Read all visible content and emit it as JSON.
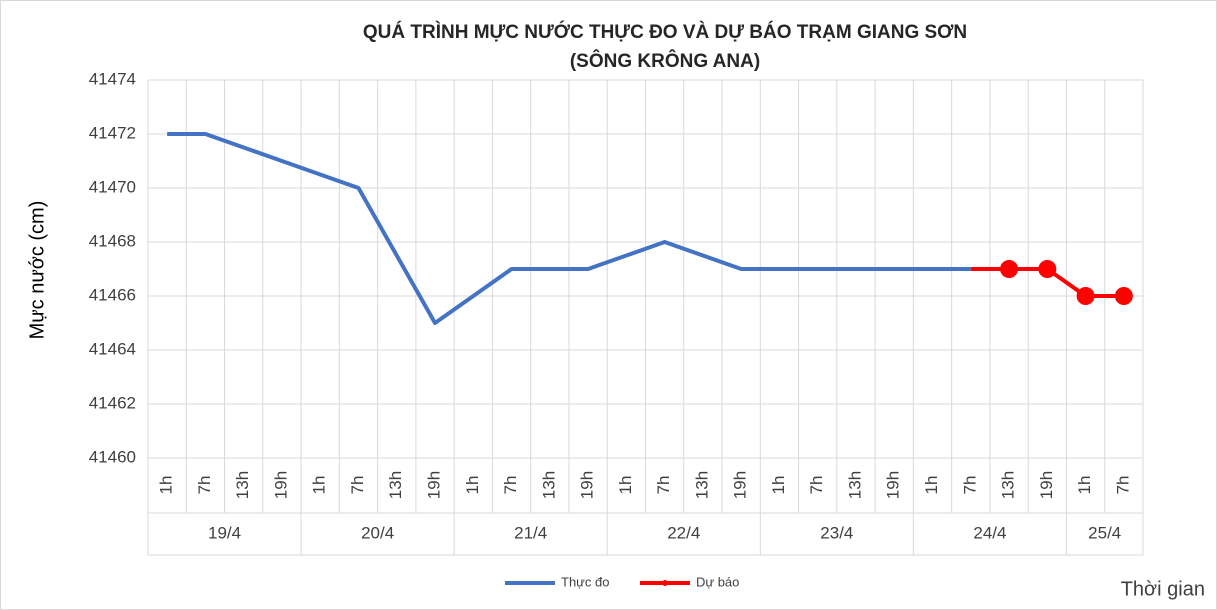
{
  "chart_data": {
    "type": "line",
    "title": "QUÁ TRÌNH MỰC NƯỚC THỰC ĐO VÀ DỰ BÁO TRẠM GIANG SƠN",
    "subtitle": "(SÔNG KRÔNG ANA)",
    "y_label": "Mực nước (cm)",
    "x_label": "Thời gian",
    "groups": [
      {
        "label": "19/4",
        "categories": [
          "1h",
          "7h",
          "13h",
          "19h"
        ]
      },
      {
        "label": "20/4",
        "categories": [
          "1h",
          "7h",
          "13h",
          "19h"
        ]
      },
      {
        "label": "21/4",
        "categories": [
          "1h",
          "7h",
          "13h",
          "19h"
        ]
      },
      {
        "label": "22/4",
        "categories": [
          "1h",
          "7h",
          "13h",
          "19h"
        ]
      },
      {
        "label": "23/4",
        "categories": [
          "1h",
          "7h",
          "13h",
          "19h"
        ]
      },
      {
        "label": "24/4",
        "categories": [
          "1h",
          "7h",
          "13h",
          "19h"
        ]
      },
      {
        "label": "25/4",
        "categories": [
          "1h",
          "7h"
        ]
      }
    ],
    "series": [
      {
        "name": "Thực đo",
        "color": "#4472c4",
        "marker": false,
        "values": [
          41472,
          41472,
          41471.5,
          41471,
          41470.5,
          41470,
          41467.5,
          41465,
          41466,
          41467,
          41467,
          41467,
          41467.5,
          41468,
          41467.5,
          41467,
          41467,
          41467,
          41467,
          41467,
          41467,
          41467,
          null,
          null,
          null,
          null
        ]
      },
      {
        "name": "Dự báo",
        "color": "#ff0000",
        "marker": true,
        "values": [
          null,
          null,
          null,
          null,
          null,
          null,
          null,
          null,
          null,
          null,
          null,
          null,
          null,
          null,
          null,
          null,
          null,
          null,
          null,
          null,
          null,
          41467,
          41467,
          41467,
          41466,
          41466
        ]
      }
    ],
    "ylim": [
      41460,
      41474
    ],
    "yticks": [
      41460,
      41462,
      41464,
      41466,
      41468,
      41470,
      41472,
      41474
    ],
    "grid": true,
    "legend": "bottom"
  }
}
